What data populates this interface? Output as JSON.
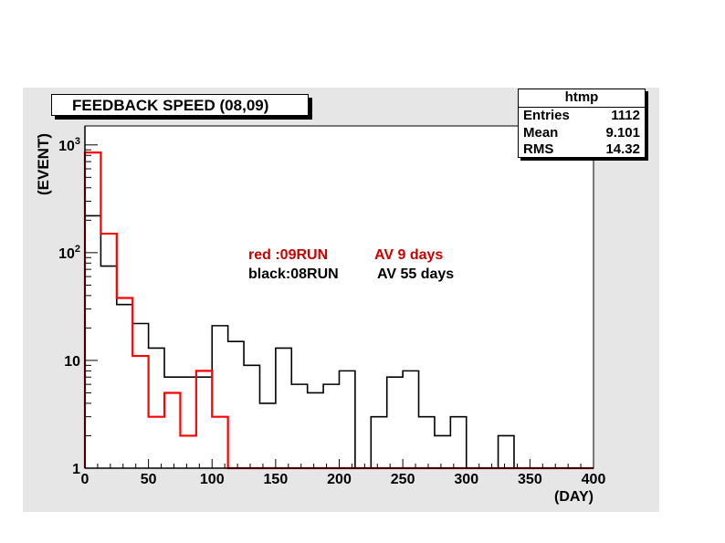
{
  "chart_data": {
    "type": "histogram",
    "title": "FEEDBACK SPEED (08,09)",
    "xlabel": "(DAY)",
    "ylabel": "(EVENT)",
    "xlim": [
      0,
      400
    ],
    "ylim": [
      1,
      1500
    ],
    "yscale": "log",
    "bin_width": 12.5,
    "x_ticks": [
      0,
      50,
      100,
      150,
      200,
      250,
      300,
      350,
      400
    ],
    "y_ticks": [
      {
        "value": 1,
        "base": "1",
        "exp": ""
      },
      {
        "value": 10,
        "base": "10",
        "exp": ""
      },
      {
        "value": 100,
        "base": "10",
        "exp": "2"
      },
      {
        "value": 1000,
        "base": "10",
        "exp": "3"
      }
    ],
    "series": [
      {
        "name": "08RUN",
        "color": "#000000",
        "values": [
          220,
          75,
          33,
          22,
          13,
          7,
          7,
          7,
          21,
          15,
          9,
          4,
          13,
          6,
          5,
          6,
          8,
          0,
          3,
          7,
          8,
          3,
          2,
          3,
          1,
          0,
          2,
          0,
          0,
          0,
          0,
          0
        ]
      },
      {
        "name": "09RUN",
        "color": "#ff0000",
        "values": [
          850,
          150,
          38,
          11,
          3,
          5,
          2,
          8,
          3,
          0,
          0,
          0,
          0,
          0,
          0,
          0,
          0,
          0,
          0,
          0,
          0,
          0,
          0,
          0,
          0,
          0,
          0,
          0,
          0,
          0,
          0,
          0
        ]
      }
    ],
    "annotations": [
      {
        "label": "red   :09RUN",
        "value": "AV 9    days",
        "color": "#cc0000"
      },
      {
        "label": "black:08RUN",
        "value": "AV 55 days",
        "color": "#000000"
      }
    ],
    "stats": {
      "name": "htmp",
      "rows": [
        {
          "label": "Entries",
          "value": "1112"
        },
        {
          "label": "Mean",
          "value": "9.101"
        },
        {
          "label": "RMS",
          "value": "14.32"
        }
      ]
    }
  }
}
